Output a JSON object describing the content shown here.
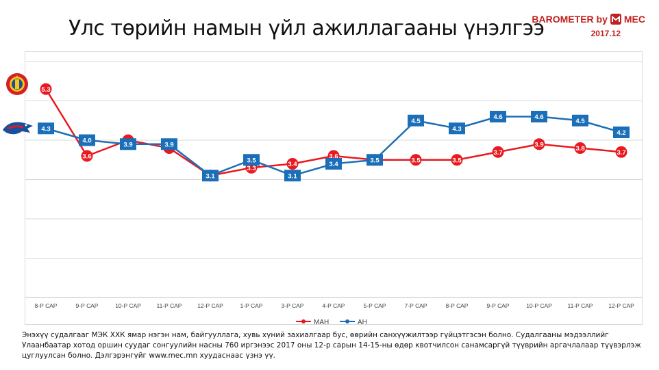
{
  "title": "Улс төрийн намын үйл ажиллагааны үнэлгээ",
  "brand": {
    "name": "BAROMETER by",
    "logo_text": "MEC",
    "date": "2017.12",
    "color": "#c0211e"
  },
  "footnote": "Энэхүү судалгааг МЭК ХХК ямар нэгэн нам, байгууллага, хувь хүний захиалгаар бус, өөрийн санхүүжилтээр гүйцэтгэсэн болно. Судалгааны мэдээллийг Улаанбаатар хотод оршин суудаг сонгуулийн насны 760 иргэнээс 2017 оны 12-р сарын 14-15-ны өдөр квотчилсон санамсаргүй түүврийн аргачлалаар түүвэрлэж цуглуулсан болно. Дэлгэрэнгүйг www.mec.mn  хуудаснаас үзнэ үү.",
  "icons": {
    "man_emblem": "mpp-party-emblem-icon",
    "ah_emblem": "dp-party-emblem-icon"
  },
  "chart_data": {
    "type": "line",
    "categories": [
      "8-Р САР",
      "9-Р САР",
      "10-Р САР",
      "11-Р САР",
      "12-Р САР",
      "1-Р САР",
      "3-Р САР",
      "4-Р САР",
      "5-Р САР",
      "7-Р САР",
      "8-Р САР",
      "9-Р САР",
      "10-Р САР",
      "11-Р САР",
      "12-Р САР"
    ],
    "series": [
      {
        "name": "МАН",
        "color": "#e8191f",
        "values": [
          5.3,
          3.6,
          4.0,
          3.8,
          3.1,
          3.3,
          3.4,
          3.6,
          3.5,
          3.5,
          3.5,
          3.7,
          3.9,
          3.8,
          3.7
        ],
        "labels": [
          "5.3",
          "3.6",
          "",
          "",
          "",
          "3.3",
          "3.4",
          "3.6",
          "",
          "3.5",
          "3.5",
          "3.7",
          "3.9",
          "3.8",
          "3.7"
        ]
      },
      {
        "name": "АН",
        "color": "#1a6fb8",
        "values": [
          4.3,
          4.0,
          3.9,
          3.9,
          3.1,
          3.5,
          3.1,
          3.4,
          3.5,
          4.5,
          4.3,
          4.6,
          4.6,
          4.5,
          4.2
        ],
        "labels": [
          "4.3",
          "4.0",
          "3.9",
          "3.9",
          "3.1",
          "3.5",
          "3.1",
          "3.4",
          "3.5",
          "4.5",
          "4.3",
          "4.6",
          "4.6",
          "4.5",
          "4.2"
        ]
      }
    ],
    "ylim": [
      0,
      6
    ],
    "grid": true,
    "legend_position": "bottom-center"
  }
}
